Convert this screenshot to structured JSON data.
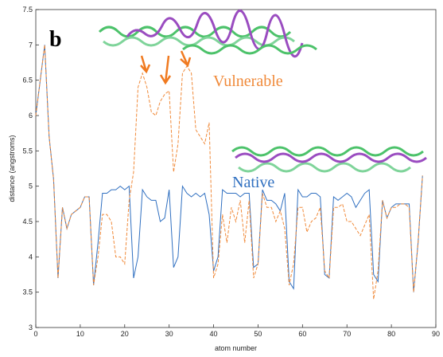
{
  "chart_data": {
    "type": "line",
    "panel_label": "b",
    "x_label": "atom number",
    "y_label": "distance (angstroms)",
    "annotations": [
      "Vulnerable",
      "Native"
    ],
    "xlim": [
      0,
      90
    ],
    "xticks": [
      0,
      10,
      20,
      30,
      40,
      50,
      60,
      70,
      80,
      90
    ],
    "ylim": [
      3,
      7.5
    ],
    "yticks": [
      3,
      3.5,
      4,
      4.5,
      5,
      5.5,
      6,
      6.5,
      7,
      7.5
    ],
    "x": [
      0,
      1,
      2,
      3,
      4,
      5,
      6,
      7,
      8,
      9,
      10,
      11,
      12,
      13,
      14,
      15,
      16,
      17,
      18,
      19,
      20,
      21,
      22,
      23,
      24,
      25,
      26,
      27,
      28,
      29,
      30,
      31,
      32,
      33,
      34,
      35,
      36,
      37,
      38,
      39,
      40,
      41,
      42,
      43,
      44,
      45,
      46,
      47,
      48,
      49,
      50,
      51,
      52,
      53,
      54,
      55,
      56,
      57,
      58,
      59,
      60,
      61,
      62,
      63,
      64,
      65,
      66,
      67,
      68,
      69,
      70,
      71,
      72,
      73,
      74,
      75,
      76,
      77,
      78,
      79,
      80,
      81,
      82,
      83,
      84,
      85,
      86,
      87
    ],
    "series": [
      {
        "name": "Native",
        "color": "#2f6fc0",
        "dashed": false,
        "values": [
          6.0,
          6.5,
          7.0,
          5.7,
          5.1,
          3.7,
          4.7,
          4.4,
          4.6,
          4.65,
          4.7,
          4.85,
          4.85,
          3.6,
          4.2,
          4.9,
          4.9,
          4.95,
          4.95,
          5.0,
          4.95,
          5.0,
          3.7,
          4.0,
          4.95,
          4.85,
          4.8,
          4.8,
          4.5,
          4.55,
          4.95,
          3.85,
          4.0,
          5.0,
          4.9,
          4.85,
          4.9,
          4.85,
          4.9,
          4.6,
          3.8,
          4.0,
          4.95,
          4.9,
          4.9,
          4.9,
          4.85,
          4.9,
          4.9,
          3.85,
          3.9,
          4.95,
          4.8,
          4.8,
          4.75,
          4.65,
          4.9,
          3.65,
          3.55,
          4.95,
          4.85,
          4.85,
          4.9,
          4.9,
          4.85,
          3.75,
          3.7,
          4.85,
          4.8,
          4.85,
          4.9,
          4.85,
          4.7,
          4.8,
          4.9,
          4.95,
          3.75,
          3.65,
          4.8,
          4.55,
          4.7,
          4.75,
          4.75,
          4.75,
          4.75,
          3.5,
          4.2,
          5.15
        ]
      },
      {
        "name": "Vulnerable",
        "color": "#f08a3a",
        "dashed": true,
        "values": [
          6.0,
          6.5,
          7.0,
          5.7,
          5.1,
          3.7,
          4.7,
          4.4,
          4.6,
          4.65,
          4.7,
          4.85,
          4.85,
          3.6,
          4.0,
          4.6,
          4.6,
          4.5,
          4.0,
          4.0,
          3.9,
          4.8,
          5.2,
          6.4,
          6.6,
          6.4,
          6.05,
          6.0,
          6.2,
          6.3,
          6.35,
          5.2,
          5.6,
          6.6,
          6.7,
          6.6,
          5.8,
          5.7,
          5.6,
          5.9,
          3.7,
          3.9,
          4.6,
          4.2,
          4.7,
          4.5,
          4.8,
          4.2,
          4.8,
          3.7,
          3.9,
          4.9,
          4.7,
          4.7,
          4.5,
          4.65,
          4.4,
          3.6,
          3.9,
          4.7,
          4.7,
          4.35,
          4.5,
          4.55,
          4.7,
          3.8,
          3.7,
          4.7,
          4.7,
          4.75,
          4.5,
          4.5,
          4.4,
          4.3,
          4.45,
          4.6,
          3.4,
          3.8,
          4.8,
          4.55,
          4.7,
          4.7,
          4.75,
          4.75,
          4.7,
          3.5,
          4.2,
          5.15
        ]
      }
    ]
  }
}
